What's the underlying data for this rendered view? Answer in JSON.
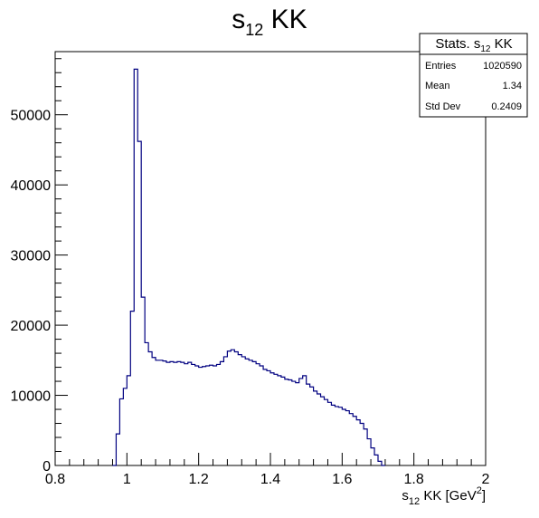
{
  "chart_data": {
    "type": "bar",
    "style": "step-histogram",
    "title": {
      "base": "s",
      "sub": "12",
      "rest": " KK"
    },
    "xlabel": {
      "base": "s",
      "sub": "12",
      "rest": " KK [GeV",
      "sup": "2",
      "close": "]"
    },
    "ylabel": "",
    "xlim": [
      0.8,
      2.0
    ],
    "ylim": [
      0,
      59000
    ],
    "x_ticks": [
      {
        "v": 0.8,
        "label": "0.8"
      },
      {
        "v": 1.0,
        "label": "1"
      },
      {
        "v": 1.2,
        "label": "1.2"
      },
      {
        "v": 1.4,
        "label": "1.4"
      },
      {
        "v": 1.6,
        "label": "1.6"
      },
      {
        "v": 1.8,
        "label": "1.8"
      },
      {
        "v": 2.0,
        "label": "2"
      }
    ],
    "y_ticks": [
      {
        "v": 0,
        "label": "0"
      },
      {
        "v": 10000,
        "label": "10000"
      },
      {
        "v": 20000,
        "label": "20000"
      },
      {
        "v": 30000,
        "label": "30000"
      },
      {
        "v": 40000,
        "label": "40000"
      },
      {
        "v": 50000,
        "label": "50000"
      }
    ],
    "line_color": "#000080",
    "bin_width": 0.01,
    "x_start": 0.96,
    "values": [
      0,
      4500,
      9500,
      11000,
      12800,
      22000,
      56500,
      46200,
      24000,
      17500,
      16200,
      15400,
      15000,
      15000,
      14900,
      14700,
      14800,
      14700,
      14800,
      14700,
      14500,
      14700,
      14400,
      14200,
      14000,
      14100,
      14200,
      14300,
      14200,
      14400,
      14800,
      15500,
      16300,
      16500,
      16200,
      15800,
      15500,
      15200,
      15000,
      14800,
      14500,
      14200,
      13700,
      13500,
      13200,
      13000,
      12800,
      12600,
      12300,
      12200,
      12000,
      11800,
      12400,
      12800,
      11600,
      11200,
      10600,
      10200,
      9800,
      9400,
      9000,
      8600,
      8400,
      8300,
      8000,
      7800,
      7400,
      7000,
      6500,
      6000,
      5200,
      3800,
      2500,
      1500,
      600,
      0
    ],
    "stats": {
      "title": {
        "base": "Stats. s",
        "sub": "12",
        "rest": " KK"
      },
      "rows": [
        {
          "label": "Entries",
          "value": "1020590"
        },
        {
          "label": "Mean",
          "value": "1.34"
        },
        {
          "label": "Std Dev",
          "value": "0.2409"
        }
      ]
    }
  }
}
